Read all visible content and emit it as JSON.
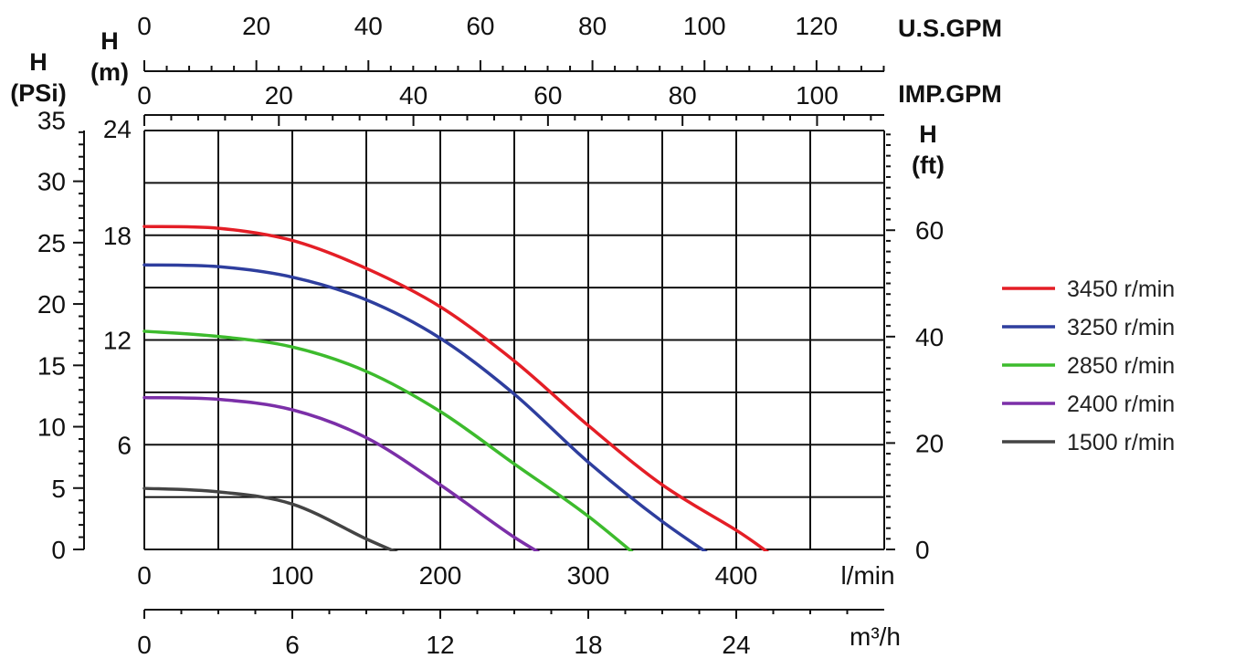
{
  "chart_data": {
    "type": "line",
    "x_unit": "l/min",
    "y_unit": "m",
    "xlim": [
      0,
      500
    ],
    "ylim": [
      0,
      24
    ],
    "grid": true,
    "legend_position": "right",
    "series": [
      {
        "name": "3450 r/min",
        "color": "#e41e26",
        "x": [
          0,
          50,
          100,
          150,
          200,
          250,
          300,
          350,
          400,
          422
        ],
        "y": [
          18.5,
          18.4,
          17.7,
          16.1,
          13.9,
          10.8,
          7.1,
          3.7,
          1.1,
          -0.2
        ]
      },
      {
        "name": "3250 r/min",
        "color": "#2e3e9e",
        "x": [
          0,
          50,
          100,
          150,
          200,
          250,
          300,
          350,
          400
        ],
        "y": [
          16.3,
          16.2,
          15.6,
          14.3,
          12.1,
          8.9,
          5.0,
          1.6,
          -1.3
        ]
      },
      {
        "name": "2850 r/min",
        "color": "#3dbb2d",
        "x": [
          0,
          50,
          100,
          150,
          200,
          250,
          300,
          350
        ],
        "y": [
          12.5,
          12.2,
          11.6,
          10.2,
          7.9,
          4.9,
          1.9,
          -1.6
        ]
      },
      {
        "name": "2400 r/min",
        "color": "#7b2fa8",
        "x": [
          0,
          50,
          100,
          150,
          200,
          250,
          290
        ],
        "y": [
          8.7,
          8.6,
          8.0,
          6.4,
          3.7,
          0.7,
          -1.3
        ]
      },
      {
        "name": "1500 r/min",
        "color": "#444444",
        "x": [
          0,
          50,
          100,
          150,
          180
        ],
        "y": [
          3.5,
          3.3,
          2.6,
          0.6,
          -0.5
        ]
      }
    ],
    "axes": {
      "x_lmin": {
        "label": "l/min",
        "ticks": [
          0,
          100,
          200,
          300,
          400
        ]
      },
      "x_m3h": {
        "label": "m³/h",
        "ticks": [
          0,
          6,
          12,
          18,
          24
        ]
      },
      "x_usgpm": {
        "label": "U.S.GPM",
        "ticks": [
          0,
          20,
          40,
          60,
          80,
          100,
          120
        ]
      },
      "x_impgpm": {
        "label": "IMP.GPM",
        "ticks": [
          0,
          20,
          40,
          60,
          80,
          100
        ]
      },
      "y_m": {
        "label_line1": "H",
        "label_line2": "(m)",
        "ticks": [
          6,
          12,
          18,
          24
        ]
      },
      "y_psi": {
        "label_line1": "H",
        "label_line2": "(PSi)",
        "ticks": [
          0,
          5,
          10,
          15,
          20,
          25,
          30,
          35
        ]
      },
      "y_ft": {
        "label_line1": "H",
        "label_line2": "(ft)",
        "ticks": [
          0,
          20,
          40,
          60
        ]
      }
    }
  }
}
